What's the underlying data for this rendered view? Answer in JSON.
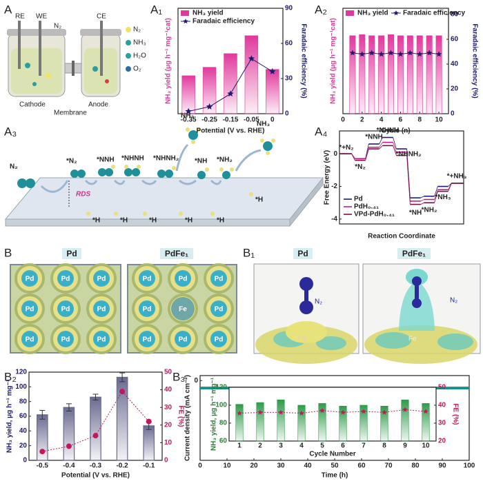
{
  "panel_labels": [
    "A",
    "A₁",
    "A₂",
    "A₃",
    "A₄",
    "B",
    "B₁",
    "B₂",
    "B₃"
  ],
  "cell_schematic": {
    "electrodes": [
      "RE",
      "WE",
      "CE"
    ],
    "gas": "N₂",
    "compartments": [
      "Cathode",
      "Membrane",
      "Anode"
    ],
    "legend": [
      "N₂",
      "NH₃",
      "H₂O",
      "O₂"
    ]
  },
  "pathway": {
    "reactant": "N₂",
    "intermediates": [
      "*N₂",
      "*NNH",
      "*NHNH",
      "*NHNH₂",
      "*NH",
      "*NH₂"
    ],
    "products": [
      "NH₃",
      "NH₃"
    ],
    "rds": "RDS",
    "hydrogen": [
      "*H",
      "*H",
      "*H",
      "*H",
      "*H",
      "*H"
    ]
  },
  "surface_models": {
    "titles": [
      "Pd",
      "PdFe₁"
    ],
    "atom": "Pd",
    "dopant": "Fe"
  },
  "charge_density": {
    "titles": [
      "Pd",
      "PdFe₁"
    ],
    "adsorbate": [
      "N₂",
      "N₂"
    ],
    "sites": [
      "Pd",
      "Fe"
    ]
  },
  "chart_data": [
    {
      "type": "bar",
      "x_label": "Potential (V vs. RHE)",
      "y_label": "NH₃ yield (μg h⁻¹ mg⁻¹cat)",
      "y2_label": "Faradaic efficiency (%)",
      "categories": [
        "-0.35",
        "-0.25",
        "-0.15",
        "-0.05",
        "0"
      ],
      "ylim": [
        0,
        100
      ],
      "y2lim": [
        0,
        90
      ],
      "y2ticks": [
        0,
        30,
        60,
        90
      ],
      "legend": "upper left",
      "series": [
        {
          "name": "NH₃ yield",
          "color": "#e0399c",
          "values": [
            36,
            44,
            57,
            74,
            42
          ]
        },
        {
          "name": "Faradaic efficiency",
          "color": "#1c1c6b",
          "axis": "y2",
          "values": [
            2,
            6,
            17,
            47,
            36
          ]
        }
      ]
    },
    {
      "type": "bar",
      "x_label": "Cycle (n)",
      "y_label": "NH₃ yield (μg h⁻¹ mg⁻¹cat)",
      "y2_label": "Faradaic efficiency (%)",
      "x": [
        1,
        2,
        3,
        4,
        5,
        6,
        7,
        8,
        9,
        10
      ],
      "xlim": [
        0,
        11
      ],
      "xticks": [
        0,
        2,
        4,
        6,
        8,
        10
      ],
      "ylim": [
        0,
        100
      ],
      "y2lim": [
        0,
        85
      ],
      "y2ticks": [
        0,
        20,
        40,
        60,
        80
      ],
      "legend": "upper left",
      "series": [
        {
          "name": "NH₃ yield",
          "color": "#e0399c",
          "values": [
            74,
            75,
            74,
            74,
            75,
            74,
            74,
            74,
            74,
            74
          ]
        },
        {
          "name": "Faradaic efficiency",
          "color": "#1c1c6b",
          "axis": "y2",
          "values": [
            49,
            48,
            49,
            48,
            49,
            48,
            49,
            48,
            49,
            48
          ]
        }
      ]
    },
    {
      "type": "step",
      "x_label": "Reaction Coordinate",
      "y_label": "Free Energy (eV)",
      "categories": [
        "*+N₂",
        "*N₂",
        "*NNH",
        "*NHNH",
        "*NHNH₂",
        "*NH",
        "*NH₂",
        "*NH₃",
        "*+NH₃"
      ],
      "ylim": [
        -4.3,
        1.4
      ],
      "yticks": [
        -4,
        -2,
        0
      ],
      "legend": "lower left",
      "series": [
        {
          "name": "Pd",
          "color": "#1a1a6e",
          "values": [
            0,
            -0.3,
            0.6,
            1.0,
            0.3,
            -2.7,
            -2.6,
            -2.0,
            -1.8
          ]
        },
        {
          "name": "PdH₀.₄₁",
          "color": "#c2188a",
          "values": [
            0,
            -0.3,
            0.4,
            0.7,
            0.1,
            -2.9,
            -2.8,
            -2.2,
            -1.8
          ]
        },
        {
          "name": "VPd-PdH₀.₄₁",
          "color": "#7a1040",
          "values": [
            0,
            -0.4,
            0.3,
            0.5,
            -0.1,
            -3.1,
            -3.0,
            -2.3,
            -1.8
          ]
        }
      ]
    },
    {
      "type": "bar",
      "x_label": "Potential (V vs. RHE)",
      "y_label": "NH₃ yield, μg h⁻¹ mg⁻¹",
      "y2_label": "FE (%)",
      "categories": [
        "-0.5",
        "-0.4",
        "-0.3",
        "-0.2",
        "-0.1"
      ],
      "ylim": [
        0,
        120
      ],
      "yticks": [
        0,
        20,
        40,
        60,
        80,
        100,
        120
      ],
      "y2lim": [
        0,
        50
      ],
      "y2ticks": [
        0,
        10,
        20,
        30,
        40,
        50
      ],
      "series": [
        {
          "color": "#6a6a90",
          "values": [
            62,
            72,
            86,
            113,
            47
          ],
          "errors": [
            6,
            5,
            4,
            6,
            5
          ]
        },
        {
          "color": "#c2185b",
          "axis": "y2",
          "values": [
            5,
            8,
            14,
            39,
            22
          ]
        }
      ]
    },
    {
      "type": "line",
      "x_label": "Time (h)",
      "y_label": "Current density (mA cm⁻²)",
      "x": [
        0,
        10,
        20,
        30,
        40,
        50,
        60,
        70,
        80,
        90,
        100
      ],
      "xlim": [
        0,
        100
      ],
      "xticks": [
        0,
        10,
        20,
        30,
        40,
        50,
        60,
        70,
        80,
        90,
        100
      ],
      "ylim": [
        -3.2,
        0.2
      ],
      "yticks": [
        0
      ],
      "series": [
        {
          "color": "#1a8f8a",
          "values": [
            -0.3,
            -0.3,
            -0.3,
            -0.3,
            -0.3,
            -0.3,
            -0.3,
            -0.3,
            -0.3,
            -0.3,
            -0.3
          ]
        }
      ]
    },
    {
      "type": "bar",
      "x_label": "Cycle Number",
      "y_label": "NH₃ yield, μg h⁻¹ mg⁻¹",
      "y2_label": "FE (%)",
      "categories": [
        "1",
        "2",
        "3",
        "4",
        "5",
        "6",
        "7",
        "8",
        "9",
        "10"
      ],
      "ylim": [
        60,
        120
      ],
      "yticks": [
        60,
        80,
        100,
        120
      ],
      "y2lim": [
        20,
        50
      ],
      "y2ticks": [
        20,
        30,
        40,
        50
      ],
      "series": [
        {
          "color": "#2e9b4a",
          "values": [
            101,
            103,
            106,
            100,
            102,
            99,
            100,
            99,
            106,
            102
          ]
        },
        {
          "color": "#c2185b",
          "axis": "y2",
          "values": [
            35.5,
            36,
            36,
            35.5,
            37,
            36,
            36.5,
            36,
            37.5,
            36.5
          ]
        }
      ]
    }
  ]
}
